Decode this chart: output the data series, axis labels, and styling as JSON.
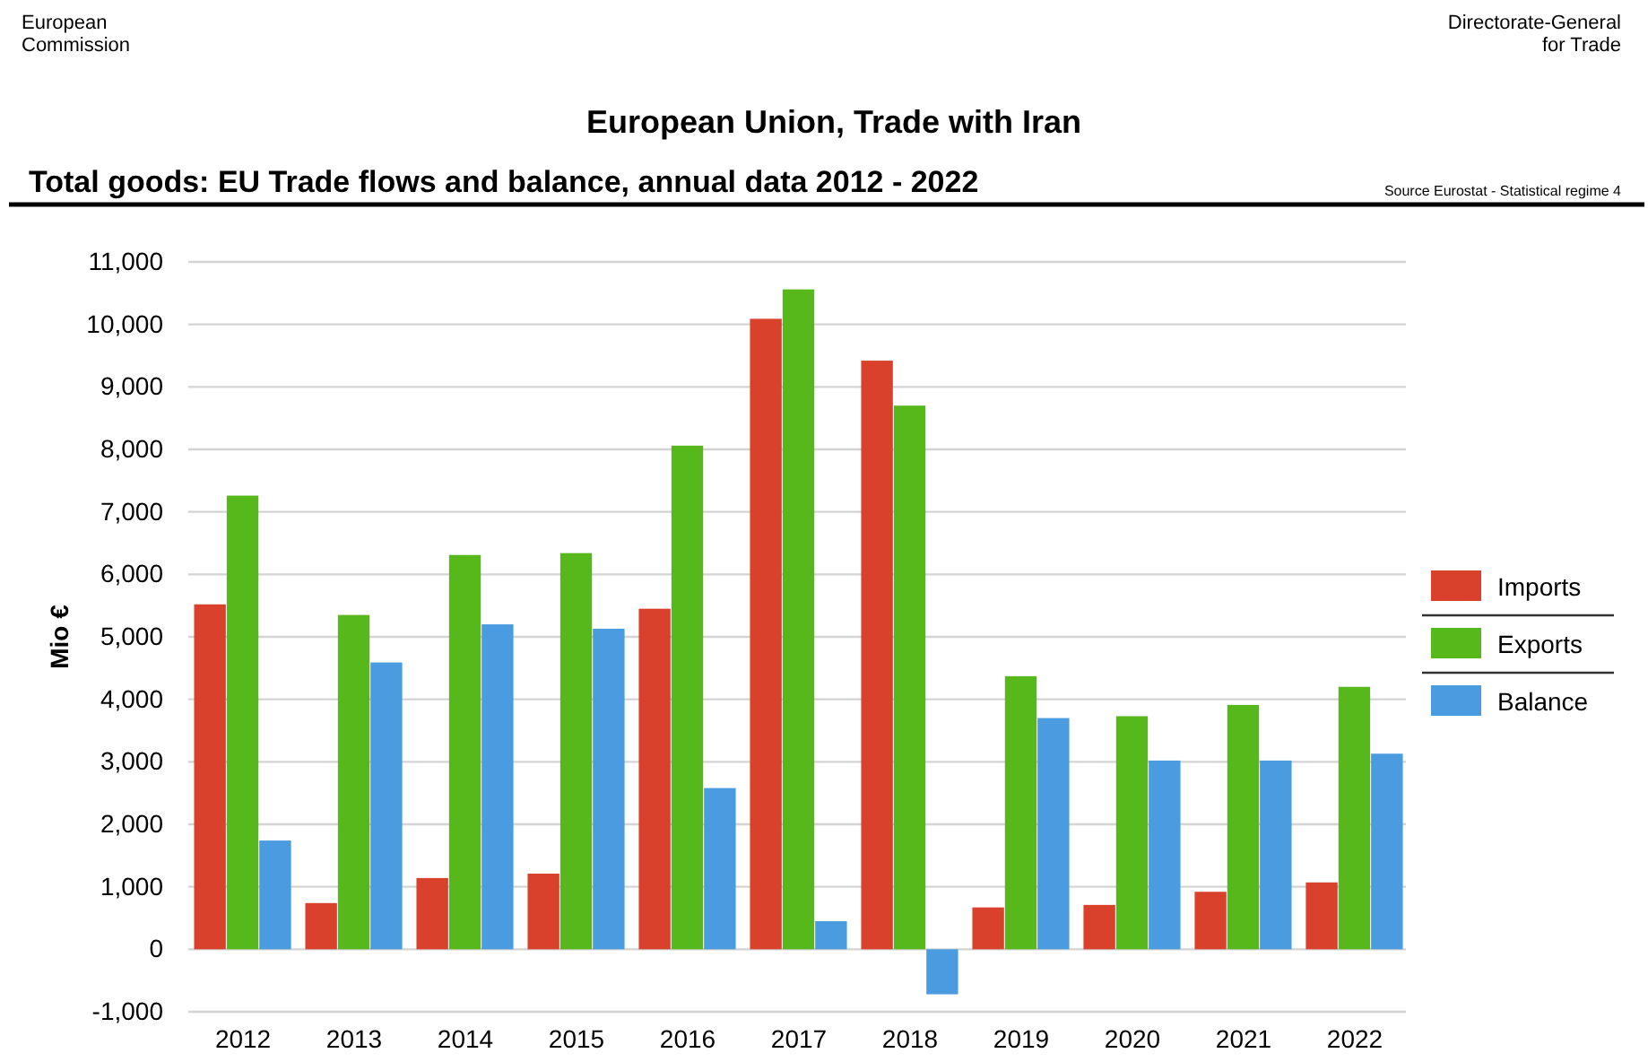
{
  "chart_data": {
    "type": "bar",
    "title": "European Union, Trade with Iran",
    "subtitle": "Total goods: EU Trade flows and balance, annual data 2012 - 2022",
    "ylabel": "Mio €",
    "annotations": [
      "European\nCommission",
      "Directorate-General\nfor Trade",
      "Source Eurostat  - Statistical regime 4"
    ],
    "categories": [
      "2012",
      "2013",
      "2014",
      "2015",
      "2016",
      "2017",
      "2018",
      "2019",
      "2020",
      "2021",
      "2022"
    ],
    "series": [
      {
        "name": "Imports",
        "color": "#d9412c",
        "values": [
          5520,
          740,
          1140,
          1210,
          5450,
          10090,
          9420,
          670,
          710,
          920,
          1070
        ]
      },
      {
        "name": "Exports",
        "color": "#56b81a",
        "values": [
          7260,
          5350,
          6310,
          6340,
          8060,
          10560,
          8700,
          4370,
          3730,
          3910,
          4200
        ]
      },
      {
        "name": "Balance",
        "color": "#4a9be0",
        "values": [
          1740,
          4590,
          5200,
          5130,
          2580,
          450,
          -720,
          3700,
          3020,
          3020,
          3130
        ]
      }
    ],
    "ylim": [
      -1000,
      11000
    ],
    "yticks": [
      {
        "value": -1000,
        "label": "-1,000"
      },
      0,
      {
        "value": 1000,
        "label": "1,000"
      },
      {
        "value": 2000,
        "label": "2,000"
      },
      {
        "value": 3000,
        "label": "3,000"
      },
      {
        "value": 4000,
        "label": "4,000"
      },
      {
        "value": 5000,
        "label": "5,000"
      },
      {
        "value": 6000,
        "label": "6,000"
      },
      {
        "value": 7000,
        "label": "7,000"
      },
      {
        "value": 8000,
        "label": "8,000"
      },
      {
        "value": 9000,
        "label": "9,000"
      },
      {
        "value": 10000,
        "label": "10,000"
      },
      {
        "value": 11000,
        "label": "11,000"
      }
    ],
    "grid": "y",
    "legend": "right"
  }
}
